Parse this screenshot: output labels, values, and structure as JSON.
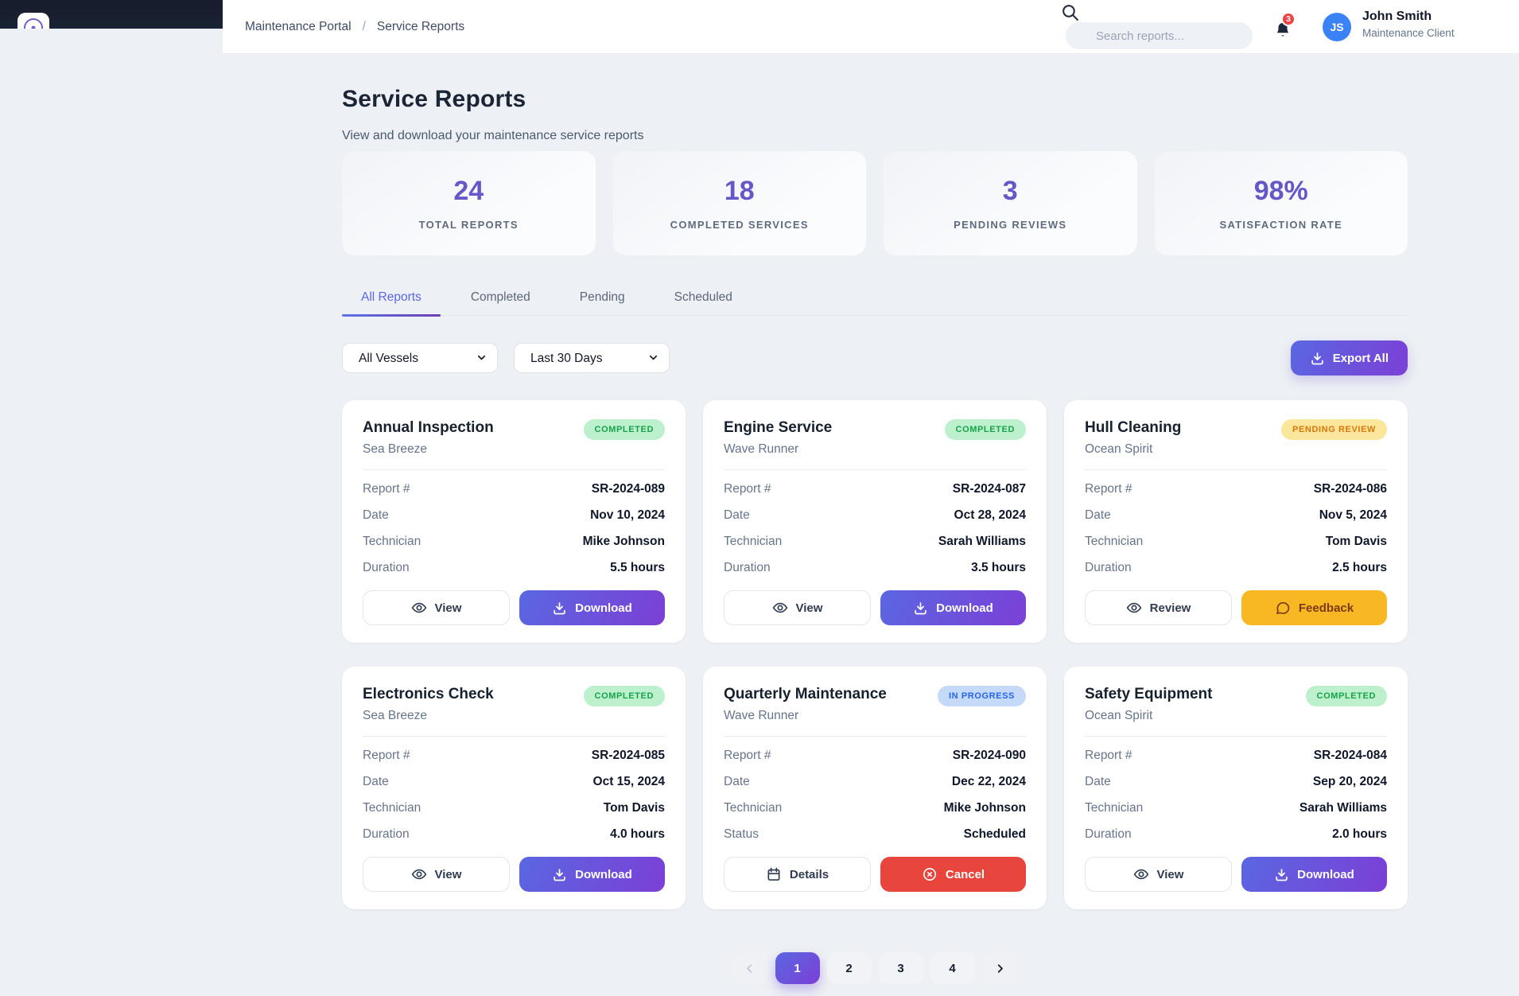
{
  "brand": {
    "logo_icon": "helm-icon"
  },
  "header": {
    "breadcrumb": [
      "Maintenance Portal",
      "Service Reports"
    ],
    "separator": "/",
    "search_icon": "search-icon",
    "search_placeholder": "Search reports...",
    "bell_icon": "bell-icon",
    "notification_count": "3",
    "user": {
      "initials": "JS",
      "name": "John Smith",
      "role": "Maintenance Client"
    }
  },
  "page": {
    "title": "Service Reports",
    "subtitle": "View and download your maintenance service reports"
  },
  "stats": [
    {
      "value": "24",
      "label": "TOTAL REPORTS"
    },
    {
      "value": "18",
      "label": "COMPLETED SERVICES"
    },
    {
      "value": "3",
      "label": "PENDING REVIEWS"
    },
    {
      "value": "98%",
      "label": "SATISFACTION RATE"
    }
  ],
  "tabs": [
    {
      "label": "All Reports",
      "active": true
    },
    {
      "label": "Completed",
      "active": false
    },
    {
      "label": "Pending",
      "active": false
    },
    {
      "label": "Scheduled",
      "active": false
    }
  ],
  "filters": {
    "vessel_selected": "All Vessels",
    "range_selected": "Last 30 Days",
    "export_label": "Export All",
    "export_icon": "download-icon"
  },
  "reports": [
    {
      "title": "Annual Inspection",
      "vessel": "Sea Breeze",
      "badge": {
        "label": "COMPLETED",
        "type": "completed"
      },
      "rows": [
        {
          "label": "Report #",
          "value": "SR-2024-089"
        },
        {
          "label": "Date",
          "value": "Nov 10, 2024"
        },
        {
          "label": "Technician",
          "value": "Mike Johnson"
        },
        {
          "label": "Duration",
          "value": "5.5 hours"
        }
      ],
      "actions": [
        {
          "label": "View",
          "icon": "eye-icon",
          "style": "outline"
        },
        {
          "label": "Download",
          "icon": "download-icon",
          "style": "primary"
        }
      ]
    },
    {
      "title": "Engine Service",
      "vessel": "Wave Runner",
      "badge": {
        "label": "COMPLETED",
        "type": "completed"
      },
      "rows": [
        {
          "label": "Report #",
          "value": "SR-2024-087"
        },
        {
          "label": "Date",
          "value": "Oct 28, 2024"
        },
        {
          "label": "Technician",
          "value": "Sarah Williams"
        },
        {
          "label": "Duration",
          "value": "3.5 hours"
        }
      ],
      "actions": [
        {
          "label": "View",
          "icon": "eye-icon",
          "style": "outline"
        },
        {
          "label": "Download",
          "icon": "download-icon",
          "style": "primary"
        }
      ]
    },
    {
      "title": "Hull Cleaning",
      "vessel": "Ocean Spirit",
      "badge": {
        "label": "PENDING REVIEW",
        "type": "pending-review"
      },
      "rows": [
        {
          "label": "Report #",
          "value": "SR-2024-086"
        },
        {
          "label": "Date",
          "value": "Nov 5, 2024"
        },
        {
          "label": "Technician",
          "value": "Tom Davis"
        },
        {
          "label": "Duration",
          "value": "2.5 hours"
        }
      ],
      "actions": [
        {
          "label": "Review",
          "icon": "eye-icon",
          "style": "outline"
        },
        {
          "label": "Feedback",
          "icon": "chat-icon",
          "style": "warning"
        }
      ]
    },
    {
      "title": "Electronics Check",
      "vessel": "Sea Breeze",
      "badge": {
        "label": "COMPLETED",
        "type": "completed"
      },
      "rows": [
        {
          "label": "Report #",
          "value": "SR-2024-085"
        },
        {
          "label": "Date",
          "value": "Oct 15, 2024"
        },
        {
          "label": "Technician",
          "value": "Tom Davis"
        },
        {
          "label": "Duration",
          "value": "4.0 hours"
        }
      ],
      "actions": [
        {
          "label": "View",
          "icon": "eye-icon",
          "style": "outline"
        },
        {
          "label": "Download",
          "icon": "download-icon",
          "style": "primary"
        }
      ]
    },
    {
      "title": "Quarterly Maintenance",
      "vessel": "Wave Runner",
      "badge": {
        "label": "IN PROGRESS",
        "type": "in-progress"
      },
      "rows": [
        {
          "label": "Report #",
          "value": "SR-2024-090"
        },
        {
          "label": "Date",
          "value": "Dec 22, 2024"
        },
        {
          "label": "Technician",
          "value": "Mike Johnson"
        },
        {
          "label": "Status",
          "value": "Scheduled"
        }
      ],
      "actions": [
        {
          "label": "Details",
          "icon": "calendar-icon",
          "style": "outline"
        },
        {
          "label": "Cancel",
          "icon": "x-circle-icon",
          "style": "danger"
        }
      ]
    },
    {
      "title": "Safety Equipment",
      "vessel": "Ocean Spirit",
      "badge": {
        "label": "COMPLETED",
        "type": "completed"
      },
      "rows": [
        {
          "label": "Report #",
          "value": "SR-2024-084"
        },
        {
          "label": "Date",
          "value": "Sep 20, 2024"
        },
        {
          "label": "Technician",
          "value": "Sarah Williams"
        },
        {
          "label": "Duration",
          "value": "2.0 hours"
        }
      ],
      "actions": [
        {
          "label": "View",
          "icon": "eye-icon",
          "style": "outline"
        },
        {
          "label": "Download",
          "icon": "download-icon",
          "style": "primary"
        }
      ]
    }
  ],
  "pagination": {
    "prev_icon": "chevron-left-icon",
    "next_icon": "chevron-right-icon",
    "pages": [
      "1",
      "2",
      "3",
      "4"
    ],
    "active_page": "1"
  },
  "colors": {
    "accent_gradient_start": "#5a67e2",
    "accent_gradient_end": "#7c3fd6",
    "stat_value": "#6458c8",
    "completed_bg": "#bdf0cd",
    "completed_text": "#16a34a",
    "pending_bg": "#fbe79b",
    "pending_text": "#d9770a",
    "progress_bg": "#c5d9f9",
    "progress_text": "#2563eb",
    "danger": "#e8453c",
    "warning": "#f7b823",
    "notification": "#ef4444",
    "avatar_bg": "#3b82f6",
    "sidebar_dark": "#18202e"
  }
}
